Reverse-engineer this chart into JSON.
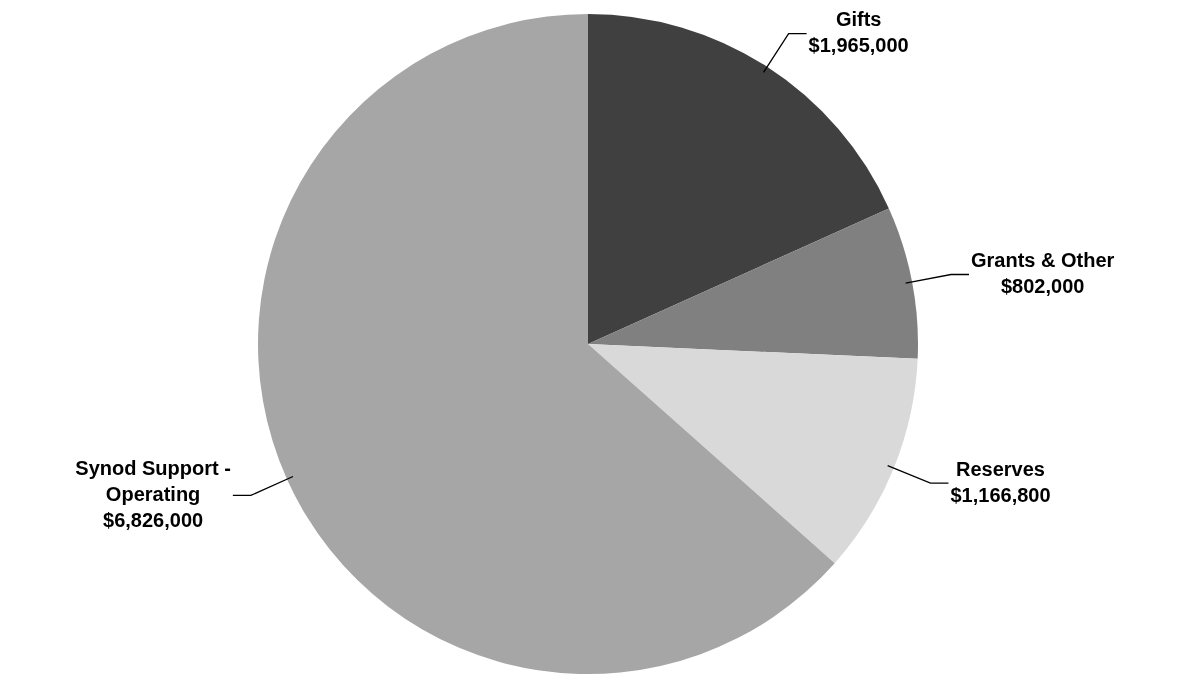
{
  "chart_data": {
    "type": "pie",
    "categories": [
      "Gifts",
      "Grants & Other",
      "Reserves",
      "Synod Support - Operating"
    ],
    "values": [
      1965000,
      802000,
      1166800,
      6826000
    ],
    "value_labels": [
      "$1,965,000",
      "$802,000",
      "$1,166,800",
      "$6,826,000"
    ],
    "colors": [
      "#404040",
      "#808080",
      "#d9d9d9",
      "#a6a6a6"
    ],
    "legend": false
  }
}
